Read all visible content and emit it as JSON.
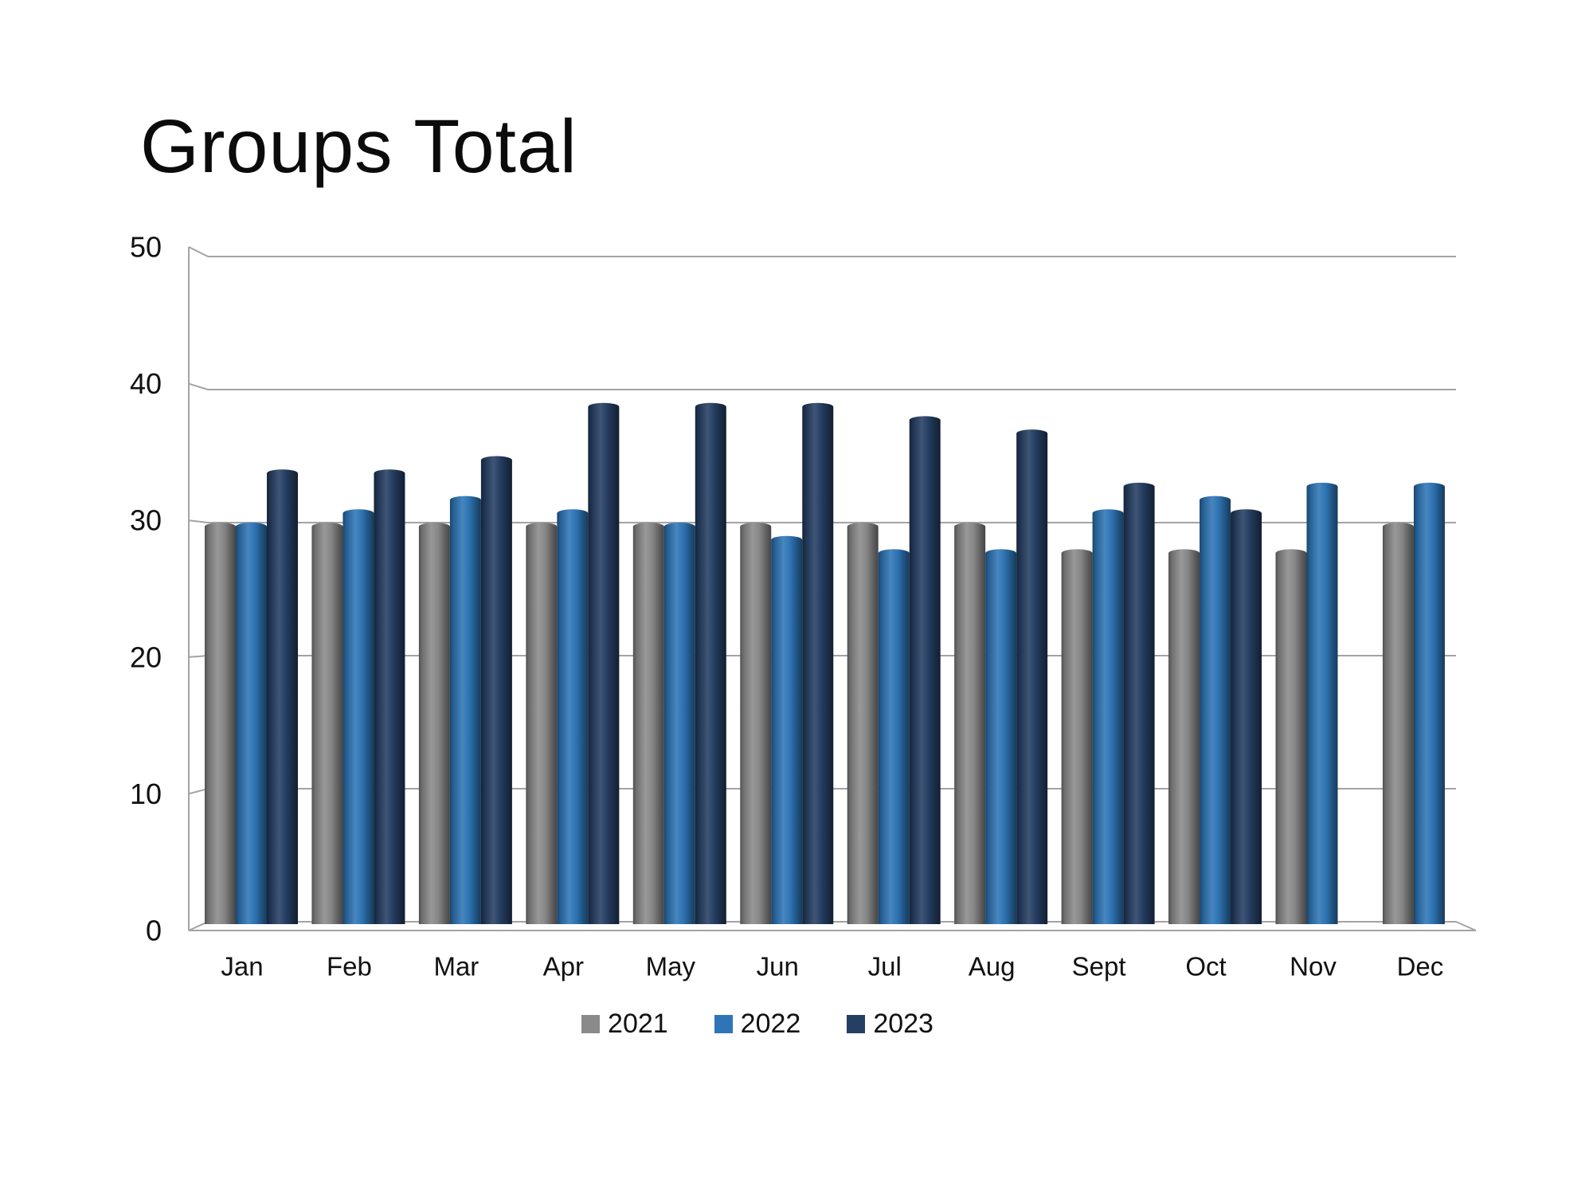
{
  "chart_data": {
    "type": "bar",
    "style": "3d-cylinder-columns",
    "title": "Groups Total",
    "categories": [
      "Jan",
      "Feb",
      "Mar",
      "Apr",
      "May",
      "Jun",
      "Jul",
      "Aug",
      "Sept",
      "Oct",
      "Nov",
      "Dec"
    ],
    "series": [
      {
        "name": "2021",
        "color": "#8A8A8A",
        "values": [
          30,
          30,
          30,
          30,
          30,
          30,
          30,
          30,
          28,
          28,
          28,
          30
        ]
      },
      {
        "name": "2022",
        "color": "#2E75B6",
        "values": [
          30,
          31,
          32,
          31,
          30,
          29,
          28,
          28,
          31,
          32,
          33,
          33
        ]
      },
      {
        "name": "2023",
        "color": "#253E63",
        "values": [
          34,
          34,
          35,
          39,
          39,
          39,
          38,
          37,
          33,
          31,
          null,
          null
        ]
      }
    ],
    "xlabel": "",
    "ylabel": "",
    "ylim": [
      0,
      50
    ],
    "yticks": [
      0,
      10,
      20,
      30,
      40,
      50
    ],
    "grid": true,
    "grid_color": "#a3a3a3",
    "axis_color": "#a3a3a3",
    "legend_position": "bottom",
    "legend_entries": [
      "2021",
      "2022",
      "2023"
    ]
  }
}
